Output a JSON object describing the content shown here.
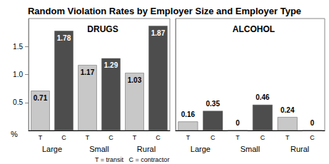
{
  "title": "Random Violation Rates by Employer Size and Employer Type",
  "note": "T = transit   C = contractor",
  "chart_data": [
    {
      "type": "bar",
      "title": "DRUGS",
      "ylabel": "%",
      "categories": [
        "Large",
        "Small",
        "Rural"
      ],
      "series": [
        {
          "name": "T",
          "color": "#c8c8c8",
          "values": [
            0.71,
            1.17,
            1.03
          ]
        },
        {
          "name": "C",
          "color": "#4d4d4d",
          "values": [
            1.78,
            1.29,
            1.87
          ]
        }
      ],
      "ylim": [
        0,
        2
      ],
      "yticks": [
        0.5,
        {
          "value": 1,
          "label": "1.0"
        },
        1.5
      ],
      "data_labels": true,
      "grid": false
    },
    {
      "type": "bar",
      "title": "ALCOHOL",
      "categories": [
        "Large",
        "Small",
        "Rural"
      ],
      "series": [
        {
          "name": "T",
          "color": "#c8c8c8",
          "values": [
            0.16,
            0,
            0.24
          ]
        },
        {
          "name": "C",
          "color": "#4d4d4d",
          "values": [
            0.35,
            0.46,
            0
          ]
        }
      ],
      "ylim": [
        0,
        2
      ],
      "data_labels": true,
      "tick_labels": "x",
      "grid": false
    }
  ]
}
